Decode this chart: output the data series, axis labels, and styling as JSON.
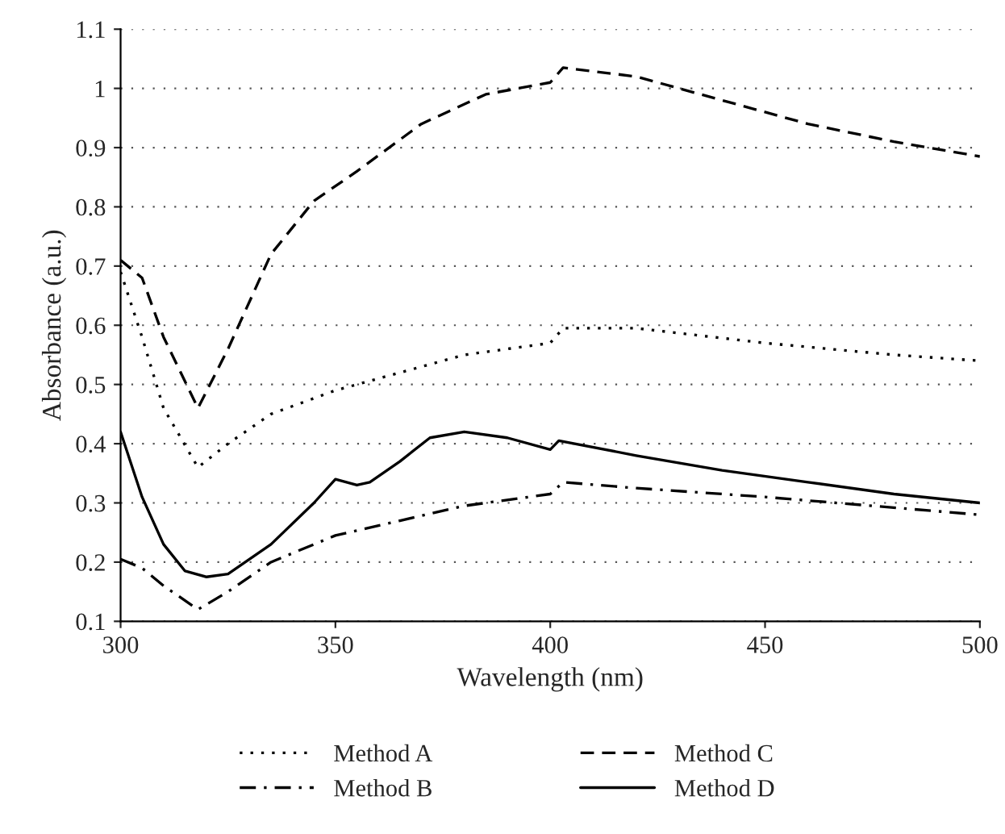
{
  "chart_data": {
    "type": "line",
    "xlabel": "Wavelength (nm)",
    "ylabel": "Absorbance (a.u.)",
    "xlim": [
      300,
      500
    ],
    "xticks": [
      300,
      350,
      400,
      450,
      500
    ],
    "ylim": [
      0.1,
      1.1
    ],
    "yticks": [
      0.1,
      0.2,
      0.3,
      0.4,
      0.5,
      0.6,
      0.7,
      0.8,
      0.9,
      1,
      1.1
    ],
    "grid": "y",
    "legend": "bottom",
    "marker": "none",
    "series": [
      {
        "name": "Method A",
        "color": "#000000",
        "line_style": "dotted",
        "x": [
          300,
          305,
          310,
          318,
          325,
          335,
          350,
          365,
          380,
          400,
          403,
          420,
          450,
          480,
          500
        ],
        "values": [
          0.69,
          0.58,
          0.46,
          0.36,
          0.4,
          0.45,
          0.49,
          0.52,
          0.55,
          0.57,
          0.595,
          0.595,
          0.57,
          0.55,
          0.54
        ]
      },
      {
        "name": "Method B",
        "color": "#000000",
        "line_style": "dashdot",
        "x": [
          300,
          305,
          310,
          318,
          325,
          335,
          350,
          365,
          380,
          395,
          400,
          403,
          420,
          450,
          475,
          500
        ],
        "values": [
          0.205,
          0.19,
          0.16,
          0.12,
          0.15,
          0.2,
          0.245,
          0.27,
          0.295,
          0.31,
          0.315,
          0.335,
          0.325,
          0.31,
          0.295,
          0.28
        ]
      },
      {
        "name": "Method C",
        "color": "#000000",
        "line_style": "dashed",
        "x": [
          300,
          305,
          310,
          318,
          325,
          335,
          345,
          355,
          370,
          385,
          400,
          403,
          420,
          440,
          460,
          480,
          500
        ],
        "values": [
          0.71,
          0.68,
          0.58,
          0.46,
          0.56,
          0.72,
          0.81,
          0.86,
          0.94,
          0.99,
          1.01,
          1.035,
          1.02,
          0.98,
          0.94,
          0.91,
          0.885
        ]
      },
      {
        "name": "Method D",
        "color": "#000000",
        "line_style": "solid",
        "x": [
          300,
          305,
          310,
          315,
          320,
          325,
          335,
          345,
          350,
          355,
          358,
          365,
          372,
          380,
          390,
          400,
          402,
          420,
          440,
          460,
          480,
          500
        ],
        "values": [
          0.42,
          0.31,
          0.23,
          0.185,
          0.175,
          0.18,
          0.23,
          0.3,
          0.34,
          0.33,
          0.335,
          0.37,
          0.41,
          0.42,
          0.41,
          0.39,
          0.405,
          0.38,
          0.355,
          0.335,
          0.315,
          0.3
        ]
      }
    ]
  }
}
